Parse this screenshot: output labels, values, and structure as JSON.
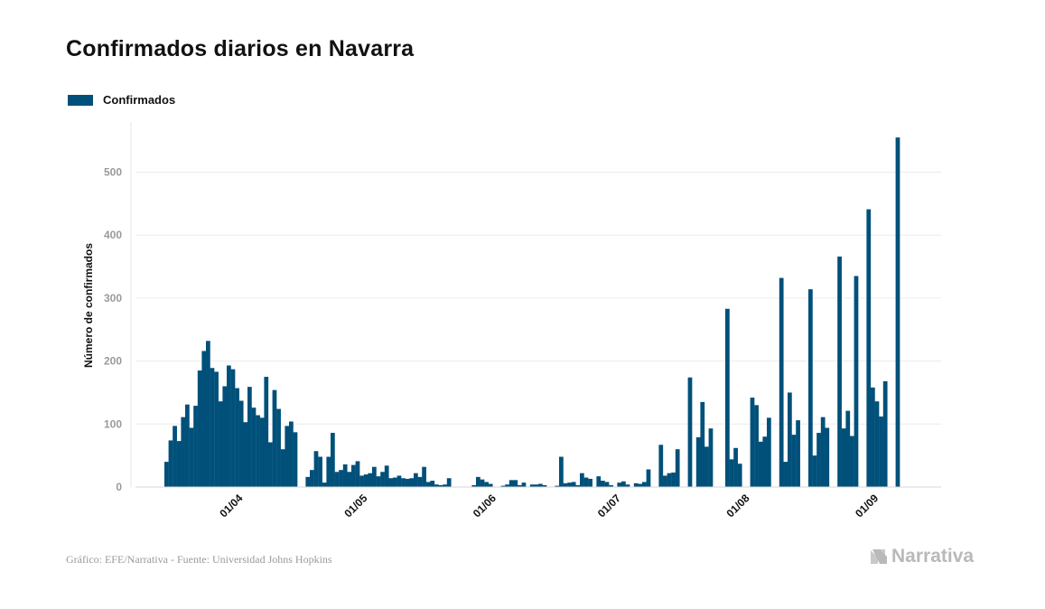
{
  "title": "Confirmados diarios en Navarra",
  "legend": {
    "label": "Confirmados",
    "color": "#00507a"
  },
  "footer": {
    "source": "Gráfico: EFE/Narrativa - Fuente: Universidad Johns Hopkins",
    "brand": "Narrativa",
    "brand_icon": "narrativa-logo-icon"
  },
  "chart_data": {
    "type": "bar",
    "title": "Confirmados diarios en Navarra",
    "xlabel": "",
    "ylabel": "Número de confirmados",
    "ylim": [
      0,
      570
    ],
    "yticks": [
      0,
      100,
      200,
      300,
      400,
      500
    ],
    "grid": true,
    "legend_position": "top-left",
    "x_tick_labels": [
      {
        "label": "01/04",
        "day_index": 15
      },
      {
        "label": "01/05",
        "day_index": 45
      },
      {
        "label": "01/06",
        "day_index": 76
      },
      {
        "label": "01/07",
        "day_index": 106
      },
      {
        "label": "01/08",
        "day_index": 137
      },
      {
        "label": "01/09",
        "day_index": 168
      }
    ],
    "series": [
      {
        "name": "Confirmados",
        "color": "#00507a",
        "values": [
          40,
          74,
          97,
          73,
          111,
          131,
          94,
          129,
          185,
          216,
          232,
          189,
          183,
          136,
          160,
          193,
          187,
          157,
          137,
          103,
          159,
          126,
          114,
          110,
          175,
          71,
          154,
          124,
          60,
          97,
          104,
          87,
          0,
          0,
          16,
          27,
          57,
          48,
          7,
          48,
          86,
          24,
          27,
          36,
          24,
          35,
          41,
          18,
          20,
          22,
          32,
          17,
          24,
          34,
          14,
          15,
          18,
          14,
          13,
          14,
          22,
          16,
          32,
          8,
          10,
          4,
          3,
          4,
          14,
          0,
          0,
          0,
          0,
          0,
          3,
          16,
          12,
          8,
          5,
          0,
          0,
          2,
          4,
          11,
          11,
          3,
          7,
          0,
          4,
          4,
          5,
          3,
          0,
          0,
          2,
          48,
          6,
          7,
          8,
          3,
          22,
          15,
          13,
          0,
          17,
          10,
          8,
          3,
          0,
          7,
          9,
          4,
          0,
          6,
          5,
          8,
          28,
          0,
          0,
          67,
          18,
          22,
          23,
          60,
          0,
          0,
          174,
          0,
          79,
          135,
          64,
          93,
          0,
          0,
          0,
          283,
          44,
          62,
          37,
          0,
          0,
          142,
          130,
          72,
          80,
          110,
          0,
          0,
          332,
          40,
          150,
          83,
          106,
          0,
          0,
          314,
          50,
          86,
          111,
          94,
          0,
          0,
          366,
          93,
          121,
          81,
          335,
          0,
          0,
          441,
          158,
          136,
          112,
          168,
          0,
          0,
          555
        ]
      }
    ]
  }
}
